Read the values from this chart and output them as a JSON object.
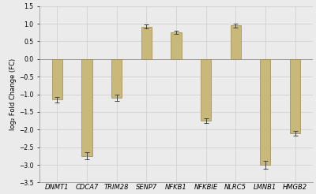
{
  "categories": [
    "DNMT1",
    "CDCA7",
    "TRIM28",
    "SENP7",
    "NFKB1",
    "NFKBIE",
    "NLRC5",
    "LMNB1",
    "HMGB2"
  ],
  "values": [
    -1.15,
    -2.75,
    -1.1,
    0.92,
    0.75,
    -1.75,
    0.95,
    -3.0,
    -2.1
  ],
  "errors": [
    0.08,
    0.1,
    0.08,
    0.05,
    0.05,
    0.07,
    0.06,
    0.12,
    0.07
  ],
  "bar_color": "#C8B97A",
  "bar_edgecolor": "#9A8A50",
  "ylabel": "log₂ Fold Change (FC)",
  "ylim": [
    -3.5,
    1.5
  ],
  "yticks": [
    -3.5,
    -3.0,
    -2.5,
    -2.0,
    -1.5,
    -1.0,
    -0.5,
    0,
    0.5,
    1.0,
    1.5
  ],
  "grid_color": "#cccccc",
  "background_color": "#ebebeb",
  "ylabel_fontsize": 6,
  "tick_fontsize": 5.5,
  "xlabel_fontsize": 6,
  "bar_width": 0.35
}
